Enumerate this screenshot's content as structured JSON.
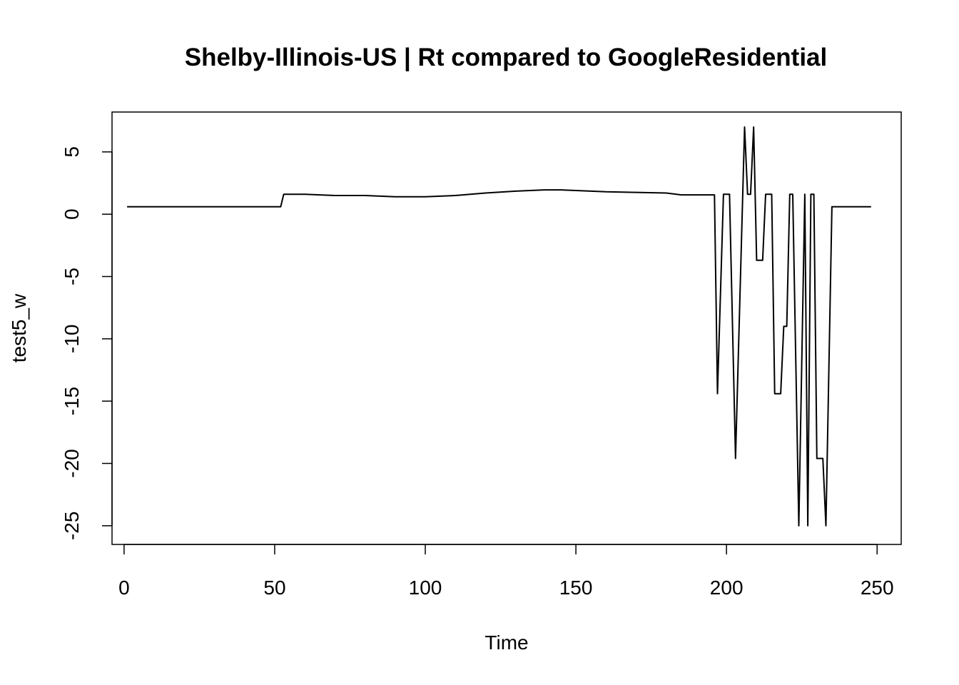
{
  "chart_data": {
    "type": "line",
    "title": "Shelby-Illinois-US | Rt compared to GoogleResidential",
    "xlabel": "Time",
    "ylabel": "test5_w",
    "xlim": [
      -4,
      258
    ],
    "ylim": [
      -26.5,
      8.2
    ],
    "xticks": [
      0,
      50,
      100,
      150,
      200,
      250
    ],
    "yticks": [
      -25,
      -20,
      -15,
      -10,
      -5,
      0,
      5
    ],
    "grid": false,
    "legend": "none",
    "line_color": "#000000",
    "series": [
      {
        "x": [
          1,
          52,
          53,
          60,
          70,
          80,
          90,
          100,
          110,
          120,
          130,
          140,
          145,
          150,
          160,
          170,
          180,
          185,
          195,
          196,
          197,
          199,
          200,
          201,
          203,
          206,
          207,
          208,
          209,
          210,
          211,
          212,
          213,
          214,
          215,
          216,
          217,
          218,
          219,
          220,
          221,
          222,
          224,
          226,
          227,
          228,
          229,
          230,
          231,
          232,
          233,
          235,
          240,
          248
        ],
        "y": [
          0.6,
          0.6,
          1.6,
          1.6,
          1.5,
          1.5,
          1.4,
          1.4,
          1.5,
          1.7,
          1.85,
          1.95,
          1.95,
          1.9,
          1.8,
          1.75,
          1.7,
          1.55,
          1.55,
          1.55,
          -14.4,
          1.6,
          1.6,
          1.6,
          -19.6,
          7,
          1.6,
          1.6,
          7,
          -3.7,
          -3.7,
          -3.7,
          1.6,
          1.6,
          1.6,
          -14.4,
          -14.4,
          -14.4,
          -9,
          -9,
          1.6,
          1.6,
          -25,
          1.6,
          -25,
          1.6,
          1.6,
          -19.6,
          -19.6,
          -19.6,
          -25,
          0.6,
          0.6,
          0.6
        ]
      }
    ]
  }
}
